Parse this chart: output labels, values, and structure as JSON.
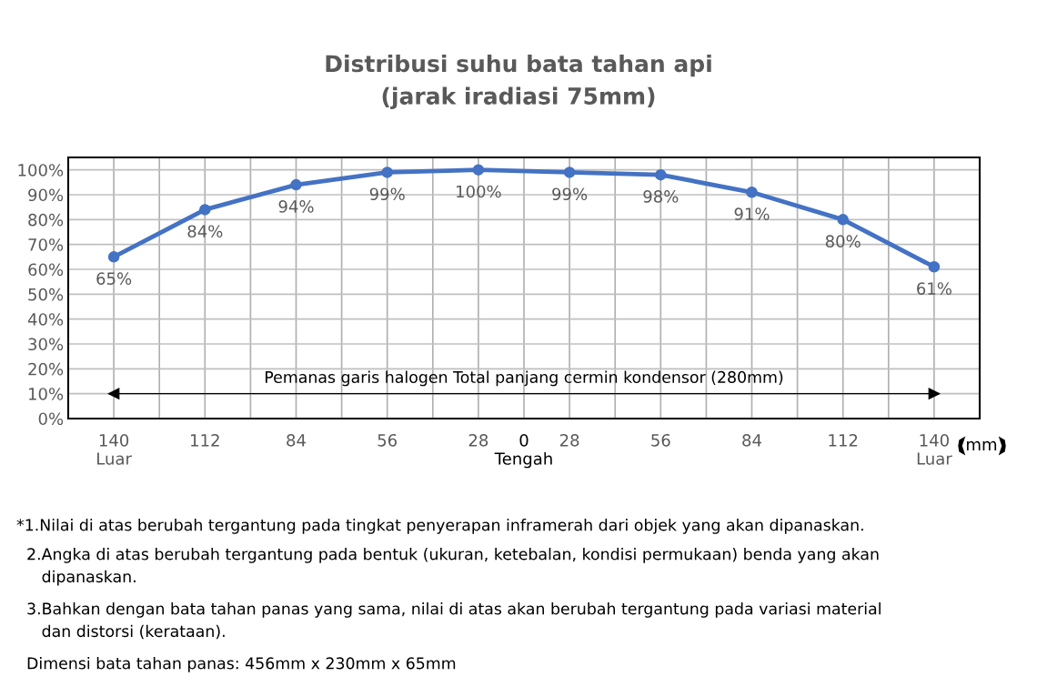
{
  "chart_data": {
    "type": "line",
    "title": "Distribusi suhu bata tahan api\n(jarak iradiasi 75mm)",
    "xlabel": "mm",
    "categories": [
      "140\nLuar",
      "112",
      "84",
      "56",
      "28",
      "28",
      "56",
      "84",
      "112",
      "140\nLuar"
    ],
    "series": [
      {
        "color": "#4472c4",
        "values": [
          65,
          84,
          94,
          99,
          100,
          99,
          98,
          91,
          80,
          61
        ],
        "value_labels": [
          "65%",
          "84%",
          "94%",
          "99%",
          "100%",
          "99%",
          "98%",
          "91%",
          "80%",
          "61%"
        ]
      }
    ],
    "ylim": [
      0,
      105
    ],
    "yticks": [
      {
        "value": 0,
        "label": "0%"
      },
      {
        "value": 10,
        "label": "10%"
      },
      {
        "value": 20,
        "label": "20%"
      },
      {
        "value": 30,
        "label": "30%"
      },
      {
        "value": 40,
        "label": "40%"
      },
      {
        "value": 50,
        "label": "50%"
      },
      {
        "value": 60,
        "label": "60%"
      },
      {
        "value": 70,
        "label": "70%"
      },
      {
        "value": 80,
        "label": "80%"
      },
      {
        "value": 90,
        "label": "90%"
      },
      {
        "value": 100,
        "label": "100%"
      }
    ],
    "grid": true,
    "marker": "circle",
    "line_style": "solid",
    "ref_lines": [
      {
        "axis": "y",
        "value": 10,
        "label": "Pemanas garis halogen Total panjang cermin kondensor (280mm)",
        "color": "#000000"
      }
    ],
    "annotations": [
      "0\nTengah",
      "*1.Nilai di atas berubah tergantung pada tingkat penyerapan inframerah dari objek yang akan dipanaskan.",
      "  2.Angka di atas berubah tergantung pada bentuk (ukuran, ketebalan, kondisi permukaan) benda yang akan\n     dipanaskan.",
      "  3.Bahkan dengan bata tahan panas yang sama, nilai di atas akan berubah tergantung pada variasi material\n     dan distorsi (kerataan).",
      "  Dimensi bata tahan panas: 456mm x 230mm x 65mm"
    ]
  }
}
